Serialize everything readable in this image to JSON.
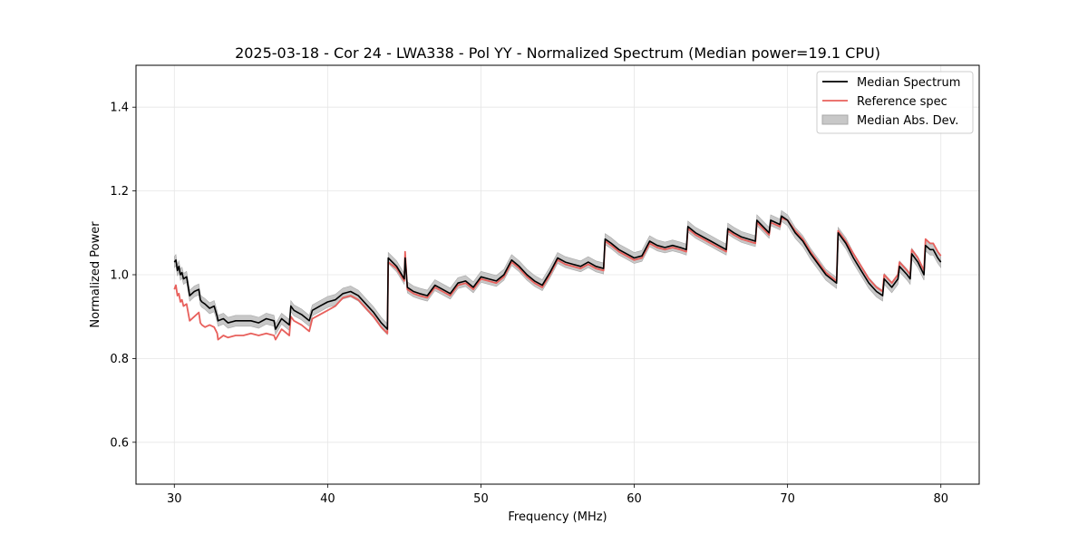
{
  "chart_data": {
    "type": "line",
    "title": "2025-03-18 - Cor 24 - LWA338 - Pol YY - Normalized Spectrum (Median power=19.1 CPU)",
    "xlabel": "Frequency (MHz)",
    "ylabel": "Normalized Power",
    "xlim": [
      27.5,
      82.5
    ],
    "ylim": [
      0.5,
      1.5
    ],
    "xticks": [
      30,
      40,
      50,
      60,
      70,
      80
    ],
    "yticks": [
      0.6,
      0.8,
      1.0,
      1.2,
      1.4
    ],
    "xtick_labels": [
      "30",
      "40",
      "50",
      "60",
      "70",
      "80"
    ],
    "ytick_labels": [
      "0.6",
      "0.8",
      "1.0",
      "1.2",
      "1.4"
    ],
    "grid": true,
    "legend_position": "top-right",
    "legend": [
      "Median Spectrum",
      "Reference spec",
      "Median Abs. Dev."
    ],
    "colors": {
      "median": "#000000",
      "reference": "#e8605c",
      "mad_fill": "#c8c8c8",
      "mad_edge": "#a8a8a8",
      "grid": "#e6e6e6"
    },
    "band_halfwidth": 0.013,
    "series": [
      {
        "name": "Median Spectrum",
        "x": [
          30.0,
          30.1,
          30.2,
          30.3,
          30.4,
          30.5,
          30.6,
          30.8,
          31.0,
          31.3,
          31.6,
          31.7,
          31.8,
          32.0,
          32.3,
          32.6,
          32.8,
          32.85,
          33.2,
          33.5,
          34.0,
          34.5,
          35.0,
          35.5,
          36.0,
          36.5,
          36.6,
          37.0,
          37.5,
          37.6,
          37.8,
          38.3,
          38.8,
          39.0,
          39.5,
          40.0,
          40.5,
          41.0,
          41.5,
          42.0,
          42.5,
          43.0,
          43.5,
          43.9,
          43.95,
          44.5,
          45.0,
          45.05,
          45.2,
          45.6,
          46.0,
          46.5,
          47.0,
          47.5,
          48.0,
          48.5,
          49.0,
          49.5,
          50.0,
          50.5,
          51.0,
          51.5,
          52.0,
          52.5,
          53.0,
          53.5,
          54.0,
          54.5,
          55.0,
          55.5,
          56.0,
          56.5,
          57.0,
          57.5,
          58.0,
          58.1,
          58.5,
          59.0,
          59.5,
          60.0,
          60.5,
          61.0,
          61.5,
          62.0,
          62.5,
          63.0,
          63.4,
          63.5,
          64.0,
          64.5,
          65.0,
          65.5,
          66.0,
          66.1,
          66.5,
          67.0,
          67.9,
          68.0,
          68.8,
          68.9,
          69.5,
          69.6,
          70.0,
          70.5,
          71.0,
          71.5,
          72.0,
          72.5,
          73.2,
          73.3,
          73.8,
          74.3,
          74.8,
          75.3,
          75.8,
          76.2,
          76.3,
          76.8,
          77.2,
          77.3,
          77.8,
          78.0,
          78.1,
          78.5,
          78.9,
          79.0,
          79.3,
          79.5,
          79.8,
          80.0
        ],
        "y": [
          1.03,
          1.035,
          1.01,
          1.02,
          1.0,
          1.005,
          0.99,
          0.995,
          0.95,
          0.96,
          0.965,
          0.94,
          0.935,
          0.93,
          0.92,
          0.925,
          0.9,
          0.89,
          0.895,
          0.885,
          0.89,
          0.89,
          0.89,
          0.885,
          0.895,
          0.89,
          0.87,
          0.895,
          0.88,
          0.925,
          0.915,
          0.905,
          0.89,
          0.915,
          0.925,
          0.935,
          0.94,
          0.955,
          0.96,
          0.95,
          0.93,
          0.91,
          0.885,
          0.87,
          1.04,
          1.02,
          0.99,
          1.04,
          0.97,
          0.96,
          0.955,
          0.95,
          0.975,
          0.965,
          0.955,
          0.98,
          0.985,
          0.97,
          0.995,
          0.99,
          0.985,
          1.0,
          1.035,
          1.02,
          1.0,
          0.985,
          0.975,
          1.005,
          1.04,
          1.03,
          1.025,
          1.02,
          1.03,
          1.02,
          1.015,
          1.085,
          1.075,
          1.06,
          1.05,
          1.04,
          1.045,
          1.08,
          1.07,
          1.065,
          1.07,
          1.065,
          1.06,
          1.115,
          1.1,
          1.09,
          1.08,
          1.07,
          1.06,
          1.11,
          1.1,
          1.09,
          1.08,
          1.13,
          1.1,
          1.13,
          1.12,
          1.14,
          1.13,
          1.1,
          1.08,
          1.05,
          1.025,
          1.0,
          0.98,
          1.1,
          1.075,
          1.04,
          1.01,
          0.98,
          0.96,
          0.95,
          0.99,
          0.97,
          0.99,
          1.02,
          1.0,
          0.99,
          1.05,
          1.03,
          1.0,
          1.07,
          1.06,
          1.06,
          1.04,
          1.03
        ]
      },
      {
        "name": "Reference spec",
        "x": [
          30.0,
          30.1,
          30.2,
          30.3,
          30.4,
          30.5,
          30.6,
          30.8,
          31.0,
          31.3,
          31.6,
          31.7,
          31.8,
          32.0,
          32.3,
          32.6,
          32.8,
          32.85,
          33.2,
          33.5,
          34.0,
          34.5,
          35.0,
          35.5,
          36.0,
          36.5,
          36.6,
          37.0,
          37.5,
          37.6,
          37.8,
          38.3,
          38.8,
          39.0,
          39.5,
          40.0,
          40.5,
          41.0,
          41.5,
          42.0,
          42.5,
          43.0,
          43.5,
          43.9,
          43.95,
          44.5,
          45.0,
          45.05,
          45.2,
          45.6,
          46.0,
          46.5,
          47.0,
          47.5,
          48.0,
          48.5,
          49.0,
          49.5,
          50.0,
          50.5,
          51.0,
          51.5,
          52.0,
          52.5,
          53.0,
          53.5,
          54.0,
          54.5,
          55.0,
          55.5,
          56.0,
          56.5,
          57.0,
          57.5,
          58.0,
          58.1,
          58.5,
          59.0,
          59.5,
          60.0,
          60.5,
          61.0,
          61.5,
          62.0,
          62.5,
          63.0,
          63.4,
          63.5,
          64.0,
          64.5,
          65.0,
          65.5,
          66.0,
          66.1,
          66.5,
          67.0,
          67.9,
          68.0,
          68.8,
          68.9,
          69.5,
          69.6,
          70.0,
          70.5,
          71.0,
          71.5,
          72.0,
          72.5,
          73.2,
          73.3,
          73.8,
          74.3,
          74.8,
          75.3,
          75.8,
          76.2,
          76.3,
          76.8,
          77.2,
          77.3,
          77.8,
          78.0,
          78.1,
          78.5,
          78.9,
          79.0,
          79.3,
          79.5,
          79.8,
          80.0
        ],
        "y": [
          0.965,
          0.975,
          0.95,
          0.955,
          0.935,
          0.94,
          0.925,
          0.93,
          0.89,
          0.9,
          0.91,
          0.885,
          0.88,
          0.875,
          0.88,
          0.875,
          0.86,
          0.845,
          0.855,
          0.85,
          0.855,
          0.855,
          0.86,
          0.855,
          0.86,
          0.855,
          0.845,
          0.87,
          0.855,
          0.9,
          0.89,
          0.88,
          0.865,
          0.895,
          0.905,
          0.915,
          0.925,
          0.945,
          0.95,
          0.94,
          0.92,
          0.9,
          0.875,
          0.86,
          1.03,
          1.015,
          0.985,
          1.055,
          0.965,
          0.955,
          0.95,
          0.945,
          0.97,
          0.96,
          0.95,
          0.975,
          0.98,
          0.965,
          0.99,
          0.985,
          0.98,
          0.995,
          1.03,
          1.015,
          0.995,
          0.98,
          0.97,
          1.0,
          1.035,
          1.025,
          1.02,
          1.015,
          1.025,
          1.015,
          1.01,
          1.08,
          1.07,
          1.055,
          1.045,
          1.035,
          1.04,
          1.075,
          1.065,
          1.06,
          1.065,
          1.06,
          1.055,
          1.11,
          1.095,
          1.085,
          1.075,
          1.065,
          1.055,
          1.105,
          1.095,
          1.085,
          1.075,
          1.125,
          1.095,
          1.125,
          1.115,
          1.135,
          1.13,
          1.105,
          1.085,
          1.055,
          1.03,
          1.005,
          0.985,
          1.105,
          1.08,
          1.05,
          1.02,
          0.99,
          0.97,
          0.96,
          1.0,
          0.98,
          1.0,
          1.03,
          1.01,
          1.0,
          1.06,
          1.04,
          1.01,
          1.085,
          1.075,
          1.075,
          1.055,
          1.045
        ]
      }
    ]
  }
}
